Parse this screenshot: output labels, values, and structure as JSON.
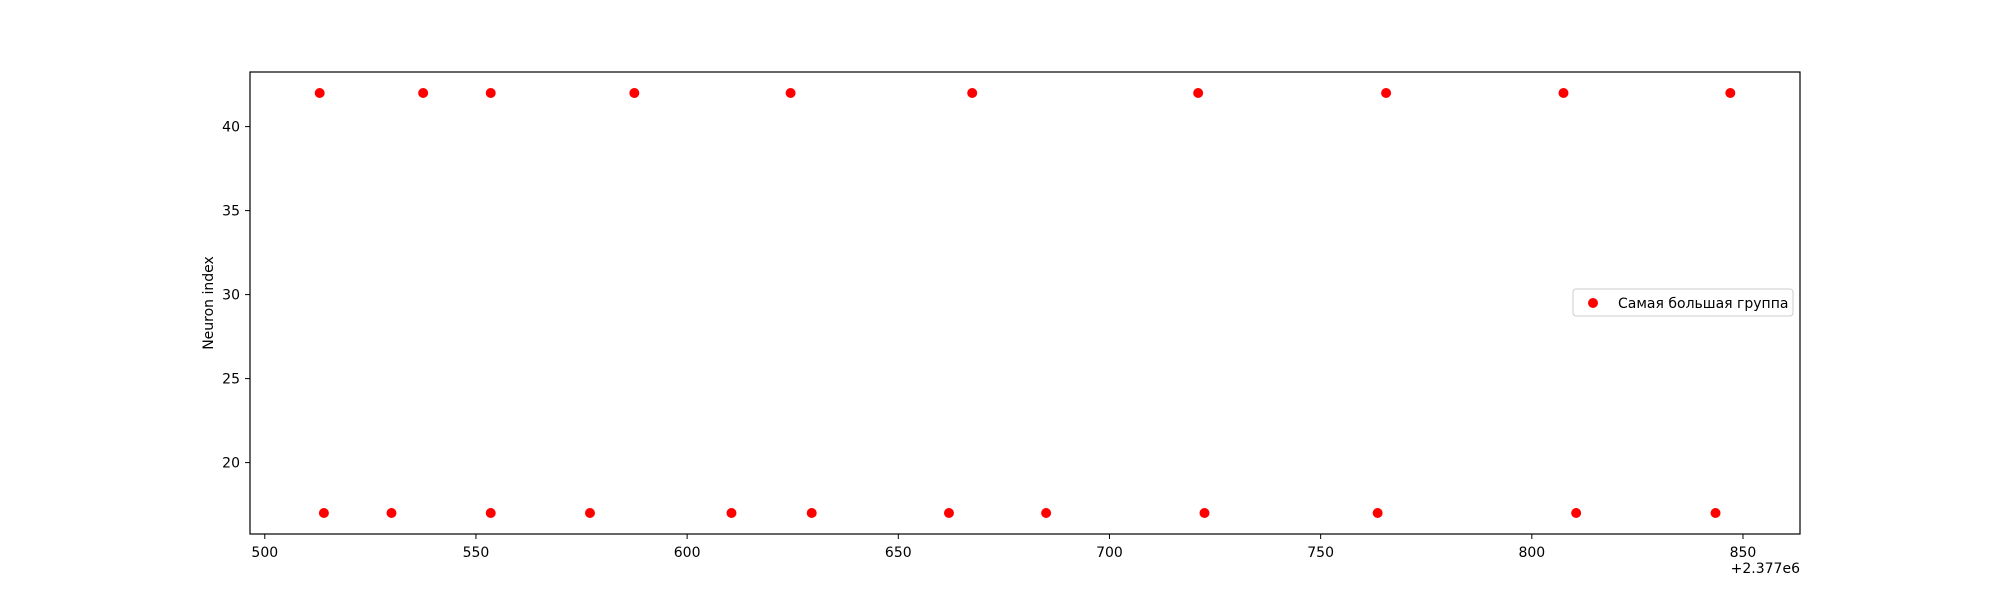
{
  "chart_data": {
    "type": "scatter",
    "title": "",
    "xlabel": "",
    "ylabel": "Neuron index",
    "x_offset_label": "+2.377e6",
    "xlim": [
      496.5,
      863.5
    ],
    "ylim": [
      15.75,
      43.25
    ],
    "xticks": [
      500,
      550,
      600,
      650,
      700,
      750,
      800,
      850
    ],
    "yticks": [
      20,
      25,
      30,
      35,
      40
    ],
    "grid": false,
    "legend_position": "center-right",
    "series": [
      {
        "name": "Самая большая группа",
        "color": "#ff0000",
        "marker": "circle",
        "points": [
          {
            "x": 513.0,
            "y": 42
          },
          {
            "x": 537.5,
            "y": 42
          },
          {
            "x": 553.5,
            "y": 42
          },
          {
            "x": 587.5,
            "y": 42
          },
          {
            "x": 624.5,
            "y": 42
          },
          {
            "x": 667.5,
            "y": 42
          },
          {
            "x": 721.0,
            "y": 42
          },
          {
            "x": 765.5,
            "y": 42
          },
          {
            "x": 807.5,
            "y": 42
          },
          {
            "x": 847.0,
            "y": 42
          },
          {
            "x": 514.0,
            "y": 17
          },
          {
            "x": 530.0,
            "y": 17
          },
          {
            "x": 553.5,
            "y": 17
          },
          {
            "x": 577.0,
            "y": 17
          },
          {
            "x": 610.5,
            "y": 17
          },
          {
            "x": 629.5,
            "y": 17
          },
          {
            "x": 662.0,
            "y": 17
          },
          {
            "x": 685.0,
            "y": 17
          },
          {
            "x": 722.5,
            "y": 17
          },
          {
            "x": 763.5,
            "y": 17
          },
          {
            "x": 810.5,
            "y": 17
          },
          {
            "x": 843.5,
            "y": 17
          }
        ]
      }
    ]
  }
}
